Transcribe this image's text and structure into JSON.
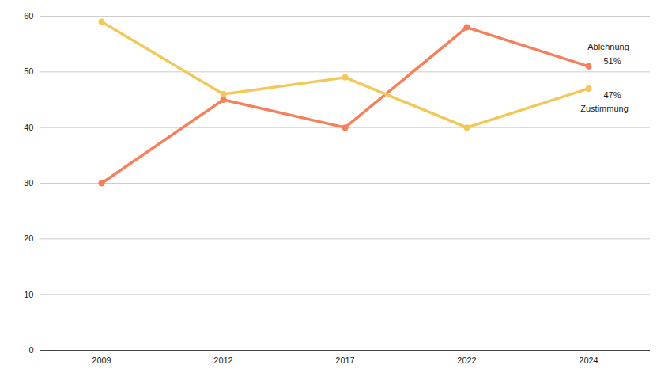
{
  "chart_data": {
    "type": "line",
    "categories": [
      "2009",
      "2012",
      "2017",
      "2022",
      "2024"
    ],
    "series": [
      {
        "name": "Ablehnung",
        "color": "#f7805c",
        "values": [
          30,
          45,
          40,
          58,
          51
        ],
        "value_labels": [
          null,
          null,
          null,
          null,
          "51%"
        ],
        "marker": "circle"
      },
      {
        "name": "Zustimmung",
        "color": "#f2c85b",
        "values": [
          59,
          46,
          49,
          40,
          47
        ],
        "value_labels": [
          null,
          null,
          null,
          null,
          "47%"
        ],
        "marker": "circle"
      }
    ],
    "ylim": [
      0,
      60
    ],
    "yticks": [
      0,
      10,
      20,
      30,
      40,
      50,
      60
    ],
    "grid": true
  }
}
